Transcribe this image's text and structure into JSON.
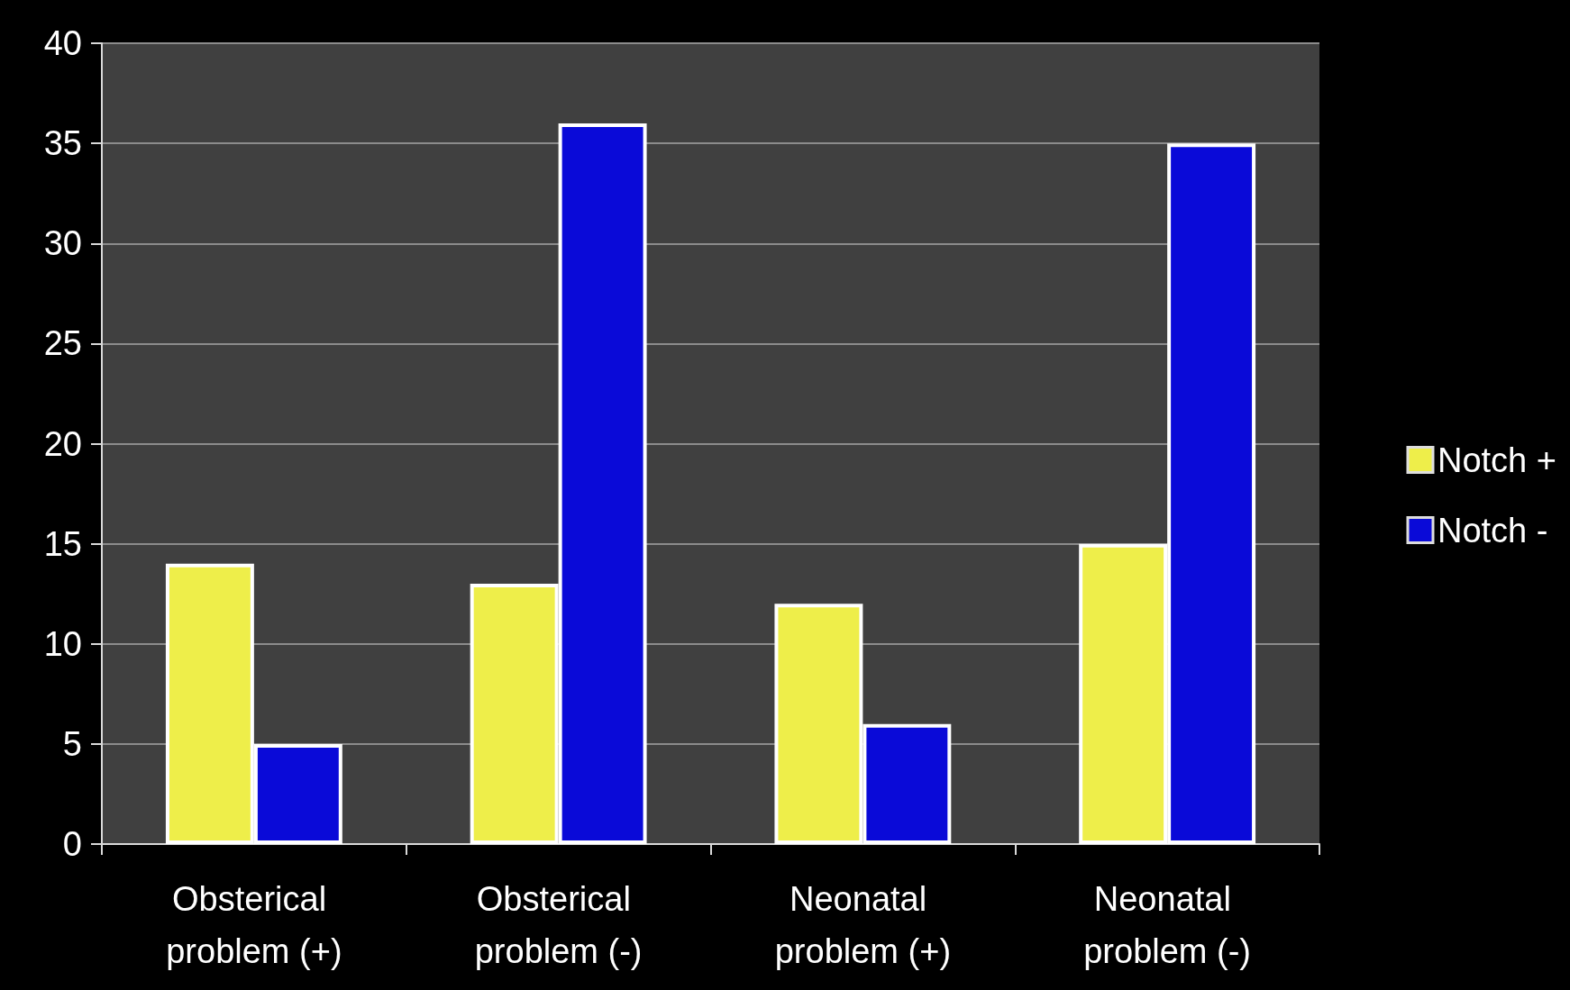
{
  "chart_data": {
    "type": "bar",
    "categories": [
      "Obsterical problem (+)",
      "Obsterical problem (-)",
      "Neonatal problem (+)",
      "Neonatal problem (-)"
    ],
    "series": [
      {
        "name": "Notch +",
        "color": "#eeee4a",
        "values": [
          14,
          13,
          12,
          15
        ]
      },
      {
        "name": "Notch -",
        "color": "#0a0ad8",
        "values": [
          5,
          36,
          6,
          35
        ]
      }
    ],
    "ylim": [
      0,
      40
    ],
    "yticks": [
      0,
      5,
      10,
      15,
      20,
      25,
      30,
      35,
      40
    ],
    "grid": "y",
    "legend": "right"
  }
}
